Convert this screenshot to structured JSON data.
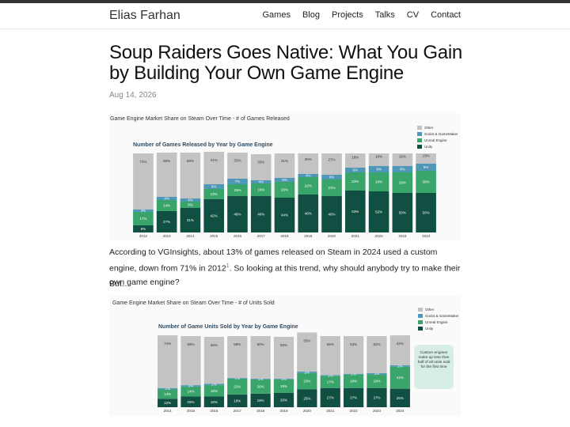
{
  "site": {
    "title": "Elias Farhan"
  },
  "nav": [
    "Games",
    "Blog",
    "Projects",
    "Talks",
    "CV",
    "Contact"
  ],
  "post": {
    "title": "Soup Raiders Goes Native: What You Gain by Building Your Own Game Engine",
    "date": "Aug 14, 2026",
    "para1_a": "According to VGInsights, about 13% of games released on Steam in 2024 used a custom engine, down from 71% in 2012",
    "para1_fn": "1",
    "para1_b": ". So looking at this trend, why should anybody try to make their own game engine?",
    "para2": "But…"
  },
  "colors": {
    "other": "#c3c3c3",
    "godot": "#4e97b6",
    "unreal": "#3aa56b",
    "unity": "#114f42"
  },
  "legend": [
    "Other",
    "Godot & GameMaker",
    "Unreal Engine",
    "Unity"
  ],
  "callout": "Custom engines make up less than half of all units sold for the first time",
  "chart_data": [
    {
      "type": "bar",
      "title": "Game Engine Market Share on Steam Over Time - # of Games Released",
      "subtitle": "Number of Games Released by Year by Game Engine",
      "categories": [
        "2012",
        "2013",
        "2014",
        "2015",
        "2016",
        "2017",
        "2018",
        "2019",
        "2020",
        "2021",
        "2022",
        "2023",
        "2024"
      ],
      "series": [
        {
          "name": "Unity",
          "values": [
            9,
            27,
            31,
            42,
            46,
            46,
            44,
            48,
            46,
            53,
            52,
            50,
            50
          ]
        },
        {
          "name": "Unreal Engine",
          "values": [
            17,
            14,
            8,
            13,
            15,
            16,
            20,
            22,
            21,
            23,
            24,
            26,
            28
          ]
        },
        {
          "name": "Godot & GameMaker",
          "values": [
            3,
            4,
            4,
            6,
            7,
            4,
            5,
            4,
            6,
            6,
            8,
            8,
            9
          ]
        },
        {
          "name": "Other",
          "values": [
            71,
            56,
            58,
            41,
            33,
            33,
            31,
            26,
            27,
            18,
            16,
            16,
            13
          ]
        }
      ],
      "ylim": [
        0,
        100
      ]
    },
    {
      "type": "bar",
      "title": "Game Engine Market Share on Steam Over Time - # of Units Sold",
      "subtitle": "Number of Game Units Sold by Year by Game Engine",
      "categories": [
        "2014",
        "2015",
        "2016",
        "2017",
        "2018",
        "2019",
        "2020",
        "2021",
        "2022",
        "2023",
        "2024"
      ],
      "series": [
        {
          "name": "Unity",
          "values": [
            12,
            15,
            15,
            18,
            19,
            20,
            25,
            27,
            27,
            27,
            26
          ]
        },
        {
          "name": "Unreal Engine",
          "values": [
            13,
            14,
            16,
            22,
            20,
            19,
            23,
            17,
            19,
            19,
            31
          ]
        },
        {
          "name": "Godot & GameMaker",
          "values": [
            2,
            2,
            2,
            1,
            1,
            1,
            2,
            1,
            1,
            2,
            2
          ]
        },
        {
          "name": "Other",
          "values": [
            74,
            69,
            66,
            59,
            60,
            59,
            55,
            55,
            53,
            52,
            42
          ]
        }
      ],
      "ylim": [
        0,
        100
      ]
    }
  ]
}
